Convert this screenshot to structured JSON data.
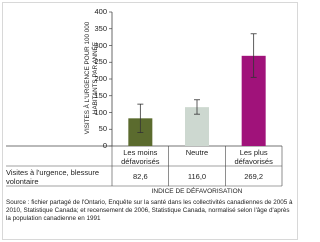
{
  "chart_data": {
    "type": "bar",
    "y_label": "VISITES À L'URGENCE POUR 100 000 HABITANTS PAR ANNÉE",
    "x_label": "INDICE DE DÉFAVORISATION",
    "row_label": "Visites à l'urgence, blessure volontaire",
    "source": "Source : fichier partagé de l'Ontario, Enquête sur la santé dans les collectivités canadiennes de 2005 à 2010, Statistique Canada; et recensement de 2006, Statistique Canada, normalisé selon l'âge d'après la population canadienne en 1991",
    "categories": [
      "Les moins défavorisés",
      "Neutre",
      "Les plus défavorisés"
    ],
    "values": [
      82.6,
      116.0,
      269.2
    ],
    "value_labels": [
      "82,6",
      "116,0",
      "269,2"
    ],
    "ci_low": [
      40,
      95,
      205
    ],
    "ci_high": [
      125,
      138,
      335
    ],
    "colors": [
      "#5b6b2e",
      "#cdd8d0",
      "#a0127a"
    ],
    "ylim": [
      0,
      400
    ],
    "yticks": [
      0,
      50,
      100,
      150,
      200,
      250,
      300,
      350,
      400
    ]
  }
}
